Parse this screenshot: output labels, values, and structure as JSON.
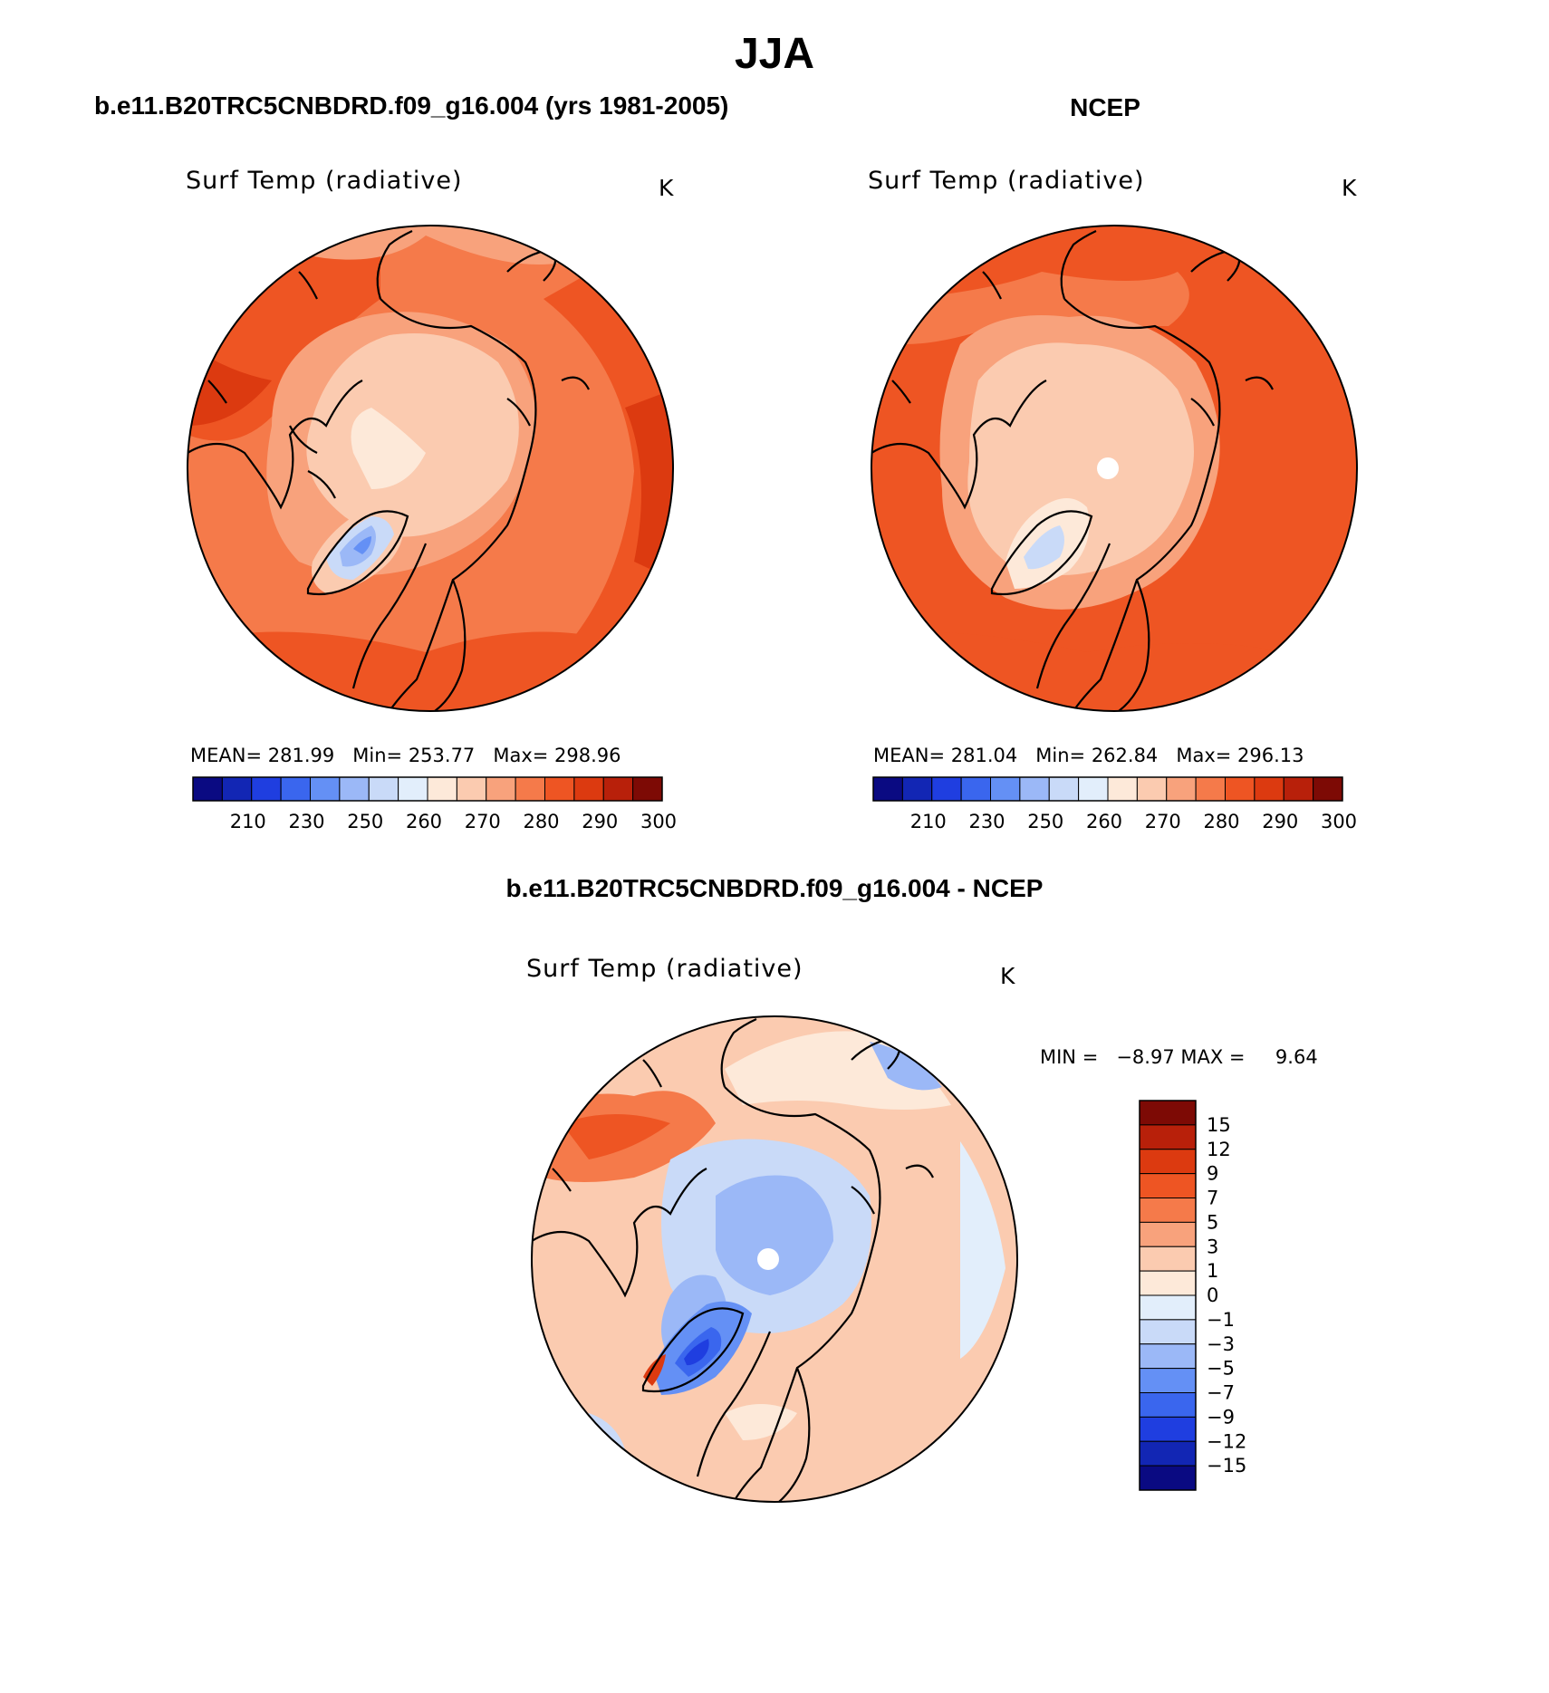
{
  "season": "JJA",
  "panels": {
    "model": {
      "header": "b.e11.B20TRC5CNBDRD.f09_g16.004 (yrs 1981-2005)",
      "title": "Surf Temp (radiative)",
      "unit": "K",
      "stats": {
        "mean_label": "MEAN=",
        "mean": "281.99",
        "min_label": "Min=",
        "min": "253.77",
        "max_label": "Max=",
        "max": "298.96"
      }
    },
    "obs": {
      "header": "NCEP",
      "title": "Surf Temp (radiative)",
      "unit": "K",
      "stats": {
        "mean_label": "MEAN=",
        "mean": "281.04",
        "min_label": "Min=",
        "min": "262.84",
        "max_label": "Max=",
        "max": "296.13"
      }
    },
    "diff": {
      "header": "b.e11.B20TRC5CNBDRD.f09_g16.004 - NCEP",
      "title": "Surf Temp (radiative)",
      "unit": "K",
      "stats": {
        "min_label": "MIN =",
        "min": "−8.97",
        "max_label": "MAX =",
        "max": "9.64"
      }
    }
  },
  "abs_colorbar": {
    "labels": [
      "210",
      "230",
      "250",
      "260",
      "270",
      "280",
      "290",
      "300"
    ],
    "colors": [
      "#0a0a82",
      "#1226b4",
      "#1f3ee0",
      "#3a66ee",
      "#6490f5",
      "#9bb8f7",
      "#c9daf8",
      "#e2eefb",
      "#fde9d9",
      "#fbcbb0",
      "#f8a27c",
      "#f57a4a",
      "#ee5523",
      "#dc3a10",
      "#b8200a",
      "#7d0a05"
    ]
  },
  "diff_colorbar": {
    "labels": [
      "15",
      "12",
      "9",
      "7",
      "5",
      "3",
      "1",
      "0",
      "−1",
      "−3",
      "−5",
      "−7",
      "−9",
      "−12",
      "−15"
    ],
    "colors_top_to_bottom": [
      "#7d0a05",
      "#b8200a",
      "#dc3a10",
      "#ee5523",
      "#f57a4a",
      "#f8a27c",
      "#fbcbb0",
      "#fde9d9",
      "#e2eefb",
      "#c9daf8",
      "#9bb8f7",
      "#6490f5",
      "#3a66ee",
      "#1f3ee0",
      "#1226b4",
      "#0a0a82"
    ]
  }
}
